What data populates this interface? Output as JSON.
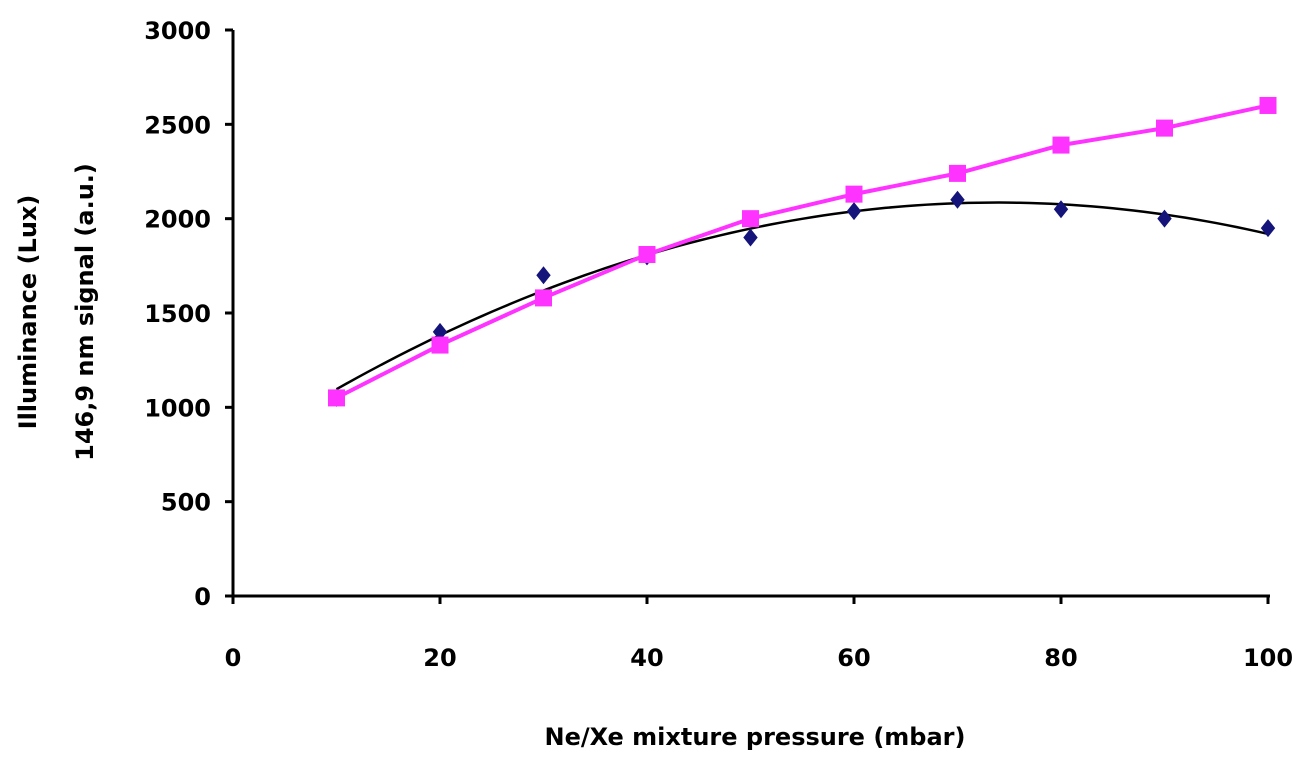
{
  "chart_data": {
    "type": "scatter",
    "xlabel": "Ne/Xe mixture pressure (mbar)",
    "ylabel_lines": [
      "Illuminance (Lux)",
      "146,9 nm signal (a.u.)"
    ],
    "xlim": [
      0,
      100
    ],
    "ylim": [
      0,
      3000
    ],
    "x_ticks": [
      0,
      20,
      40,
      60,
      80,
      100
    ],
    "y_ticks": [
      0,
      500,
      1000,
      1500,
      2000,
      2500,
      3000
    ],
    "grid": false,
    "legend": "none",
    "series": [
      {
        "marker": "diamond",
        "color": "#14147a",
        "x": [
          10,
          20,
          30,
          40,
          50,
          60,
          70,
          80,
          90,
          100
        ],
        "y": [
          1050,
          1400,
          1700,
          1800,
          1900,
          2040,
          2100,
          2050,
          2000,
          1950
        ],
        "trendline": "polynomial-2"
      },
      {
        "marker": "square",
        "color": "#ff33ff",
        "line": true,
        "x": [
          10,
          20,
          30,
          40,
          50,
          60,
          70,
          80,
          90,
          100
        ],
        "y": [
          1050,
          1330,
          1580,
          1810,
          2000,
          2130,
          2240,
          2390,
          2480,
          2600
        ]
      }
    ],
    "trendline_color": "#000000"
  }
}
